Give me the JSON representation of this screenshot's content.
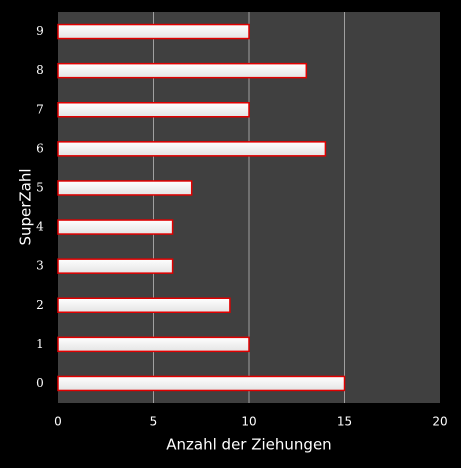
{
  "chart_data": {
    "type": "bar",
    "orientation": "horizontal",
    "x_label": "Anzahl der Ziehungen",
    "y_label": "SuperZahl",
    "categories": [
      "0",
      "1",
      "2",
      "3",
      "4",
      "5",
      "6",
      "7",
      "8",
      "9"
    ],
    "values": [
      15,
      10,
      9,
      6,
      6,
      7,
      14,
      10,
      13,
      10
    ],
    "color": "#ffffff",
    "edge_color": "#e00000",
    "xlim": [
      0,
      20
    ],
    "xticks": [
      0,
      5,
      10,
      15,
      20
    ],
    "grid": true
  }
}
